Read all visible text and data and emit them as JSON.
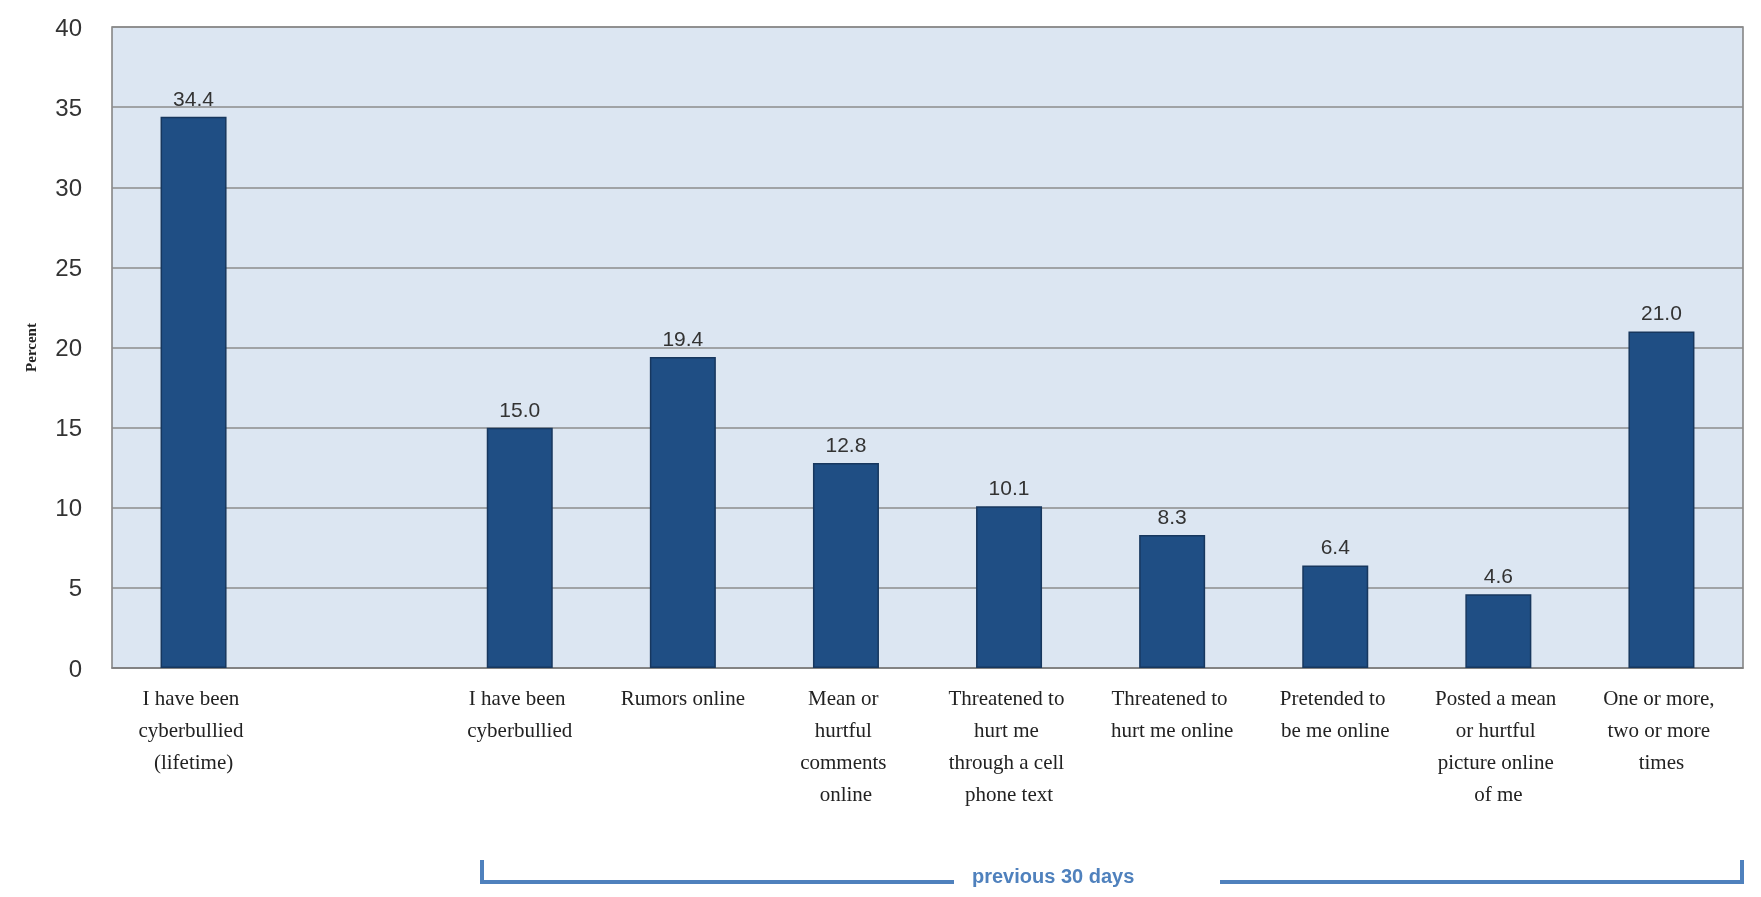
{
  "chart_data": {
    "type": "bar",
    "ylabel": "Percent",
    "categories": [
      "I have been cyberbullied (lifetime)",
      null,
      "I have been cyberbullied",
      "Rumors online",
      "Mean or hurtful comments online",
      "Threatened to hurt me through a cell phone text",
      "Threatened to hurt me online",
      "Pretended to be me online",
      "Posted a mean or hurtful picture online of me",
      "One or more, two or more times"
    ],
    "values": [
      34.4,
      null,
      15.0,
      19.4,
      12.8,
      10.1,
      8.3,
      6.4,
      4.6,
      21.0
    ],
    "value_labels": [
      "34.4",
      null,
      "15.0",
      "19.4",
      "12.8",
      "10.1",
      "8.3",
      "6.4",
      "4.6",
      "21.0"
    ],
    "color": "#1f4e84",
    "ylim": [
      0,
      40
    ],
    "yticks": [
      0,
      5,
      10,
      15,
      20,
      25,
      30,
      35,
      40
    ],
    "grid": "y",
    "annotations": [
      "previous 30 days"
    ]
  }
}
